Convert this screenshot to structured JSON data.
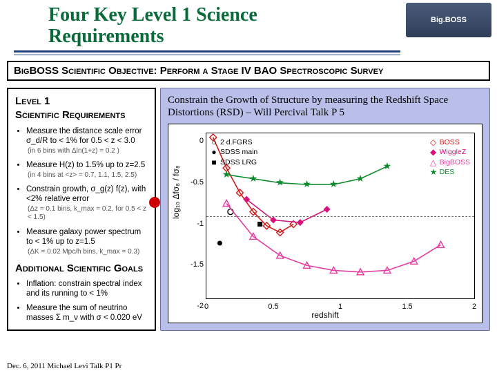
{
  "title": "Four Key Level 1 Science Requirements",
  "logo_label": "Big.BOSS",
  "logo_bg_from": "#4a5b7a",
  "logo_bg_to": "#2f3f5a",
  "objective_line": "BigBOSS Scientific Objective: Perform a Stage IV  BAO  Spectroscopic Survey",
  "left": {
    "h1a": "Level 1",
    "h1b": "Scientific Requirements",
    "bullets": [
      {
        "txt": "Measure the distance scale error σ_d/R to < 1% for 0.5 < z < 3.0",
        "paren": "(in 6 bins with Δln(1+z) = 0.2 )"
      },
      {
        "txt": "Measure H(z) to 1.5% up to z=2.5",
        "paren": "(in 4 bins at <z> = 0.7, 1.1, 1.5, 2.5)"
      },
      {
        "txt": "Constrain growth, σ_g(z) f(z), with <2% relative error",
        "paren": "(Δz = 0.1 bins, k_max = 0.2, for 0.5 < z < 1.5)"
      },
      {
        "txt": "Measure galaxy power spectrum to < 1% up to z=1.5",
        "paren": "(ΔK = 0.02 Mpc/h bins, k_max = 0.3)"
      }
    ],
    "h2": "Additional Scientific Goals",
    "bullets2": [
      {
        "txt": "Inflation: constrain spectral index and its running  to < 1%"
      },
      {
        "txt": "Measure the sum of neutrino masses Σ m_ν with  σ < 0.020 eV"
      }
    ]
  },
  "callout": "Constrain the Growth of Structure by measuring the Redshift Space Distortions (RSD) – Will Percival Talk P 5",
  "callout_bg": "#b9bfe9",
  "chart": {
    "xlabel": "redshift",
    "ylabel": "log₁₀ Δfσ₈ / fσ₈",
    "xlim": [
      0,
      2.0
    ],
    "xticks": [
      0,
      0.5,
      1.0,
      1.5,
      2.0
    ],
    "ylim": [
      -2.0,
      0
    ],
    "yticks": [
      0,
      -0.5,
      -1.0,
      -1.5,
      -2.0
    ],
    "dash_y": -1.0,
    "legend_left": [
      {
        "marker": "○",
        "color": "#000000",
        "label": "2 d.FGRS"
      },
      {
        "marker": "●",
        "color": "#000000",
        "label": "SDSS main"
      },
      {
        "marker": "■",
        "color": "#000000",
        "label": "SDSS LRG"
      }
    ],
    "legend_right": [
      {
        "marker": "◇",
        "color": "#d01818",
        "label": "BOSS"
      },
      {
        "marker": "◆",
        "color": "#d4147a",
        "label": "WiggleZ"
      },
      {
        "marker": "△",
        "color": "#e53aa0",
        "label": "BigBOSS"
      },
      {
        "marker": "★",
        "color": "#0a8a2a",
        "label": "DES"
      }
    ],
    "series": {
      "fgrs": {
        "color": "#000000",
        "marker": "○",
        "pts": [
          [
            0.18,
            -0.95
          ]
        ]
      },
      "sdss_m": {
        "color": "#000000",
        "marker": "●",
        "pts": [
          [
            0.1,
            -1.33
          ]
        ]
      },
      "sdss_l": {
        "color": "#000000",
        "marker": "■",
        "pts": [
          [
            0.4,
            -1.1
          ]
        ]
      },
      "boss": {
        "color": "#d01818",
        "marker": "◇",
        "line": true,
        "pts": [
          [
            0.05,
            -0.05
          ],
          [
            0.15,
            -0.42
          ],
          [
            0.25,
            -0.72
          ],
          [
            0.35,
            -0.95
          ],
          [
            0.45,
            -1.12
          ],
          [
            0.55,
            -1.2
          ],
          [
            0.65,
            -1.1
          ]
        ]
      },
      "wigglez": {
        "color": "#d4147a",
        "marker": "◆",
        "line": true,
        "pts": [
          [
            0.3,
            -0.8
          ],
          [
            0.5,
            -1.05
          ],
          [
            0.7,
            -1.08
          ],
          [
            0.9,
            -0.92
          ]
        ]
      },
      "bigboss": {
        "color": "#e53aa0",
        "marker": "△",
        "line": true,
        "pts": [
          [
            0.15,
            -0.85
          ],
          [
            0.35,
            -1.25
          ],
          [
            0.55,
            -1.48
          ],
          [
            0.75,
            -1.6
          ],
          [
            0.95,
            -1.66
          ],
          [
            1.15,
            -1.68
          ],
          [
            1.35,
            -1.66
          ],
          [
            1.55,
            -1.55
          ],
          [
            1.75,
            -1.35
          ]
        ]
      },
      "des": {
        "color": "#0a8a2a",
        "marker": "★",
        "line": true,
        "pts": [
          [
            0.15,
            -0.5
          ],
          [
            0.35,
            -0.55
          ],
          [
            0.55,
            -0.6
          ],
          [
            0.75,
            -0.62
          ],
          [
            0.95,
            -0.62
          ],
          [
            1.15,
            -0.55
          ],
          [
            1.35,
            -0.4
          ]
        ]
      }
    }
  },
  "footer": "Dec. 6, 2011  Michael Levi Talk P1 Pr"
}
